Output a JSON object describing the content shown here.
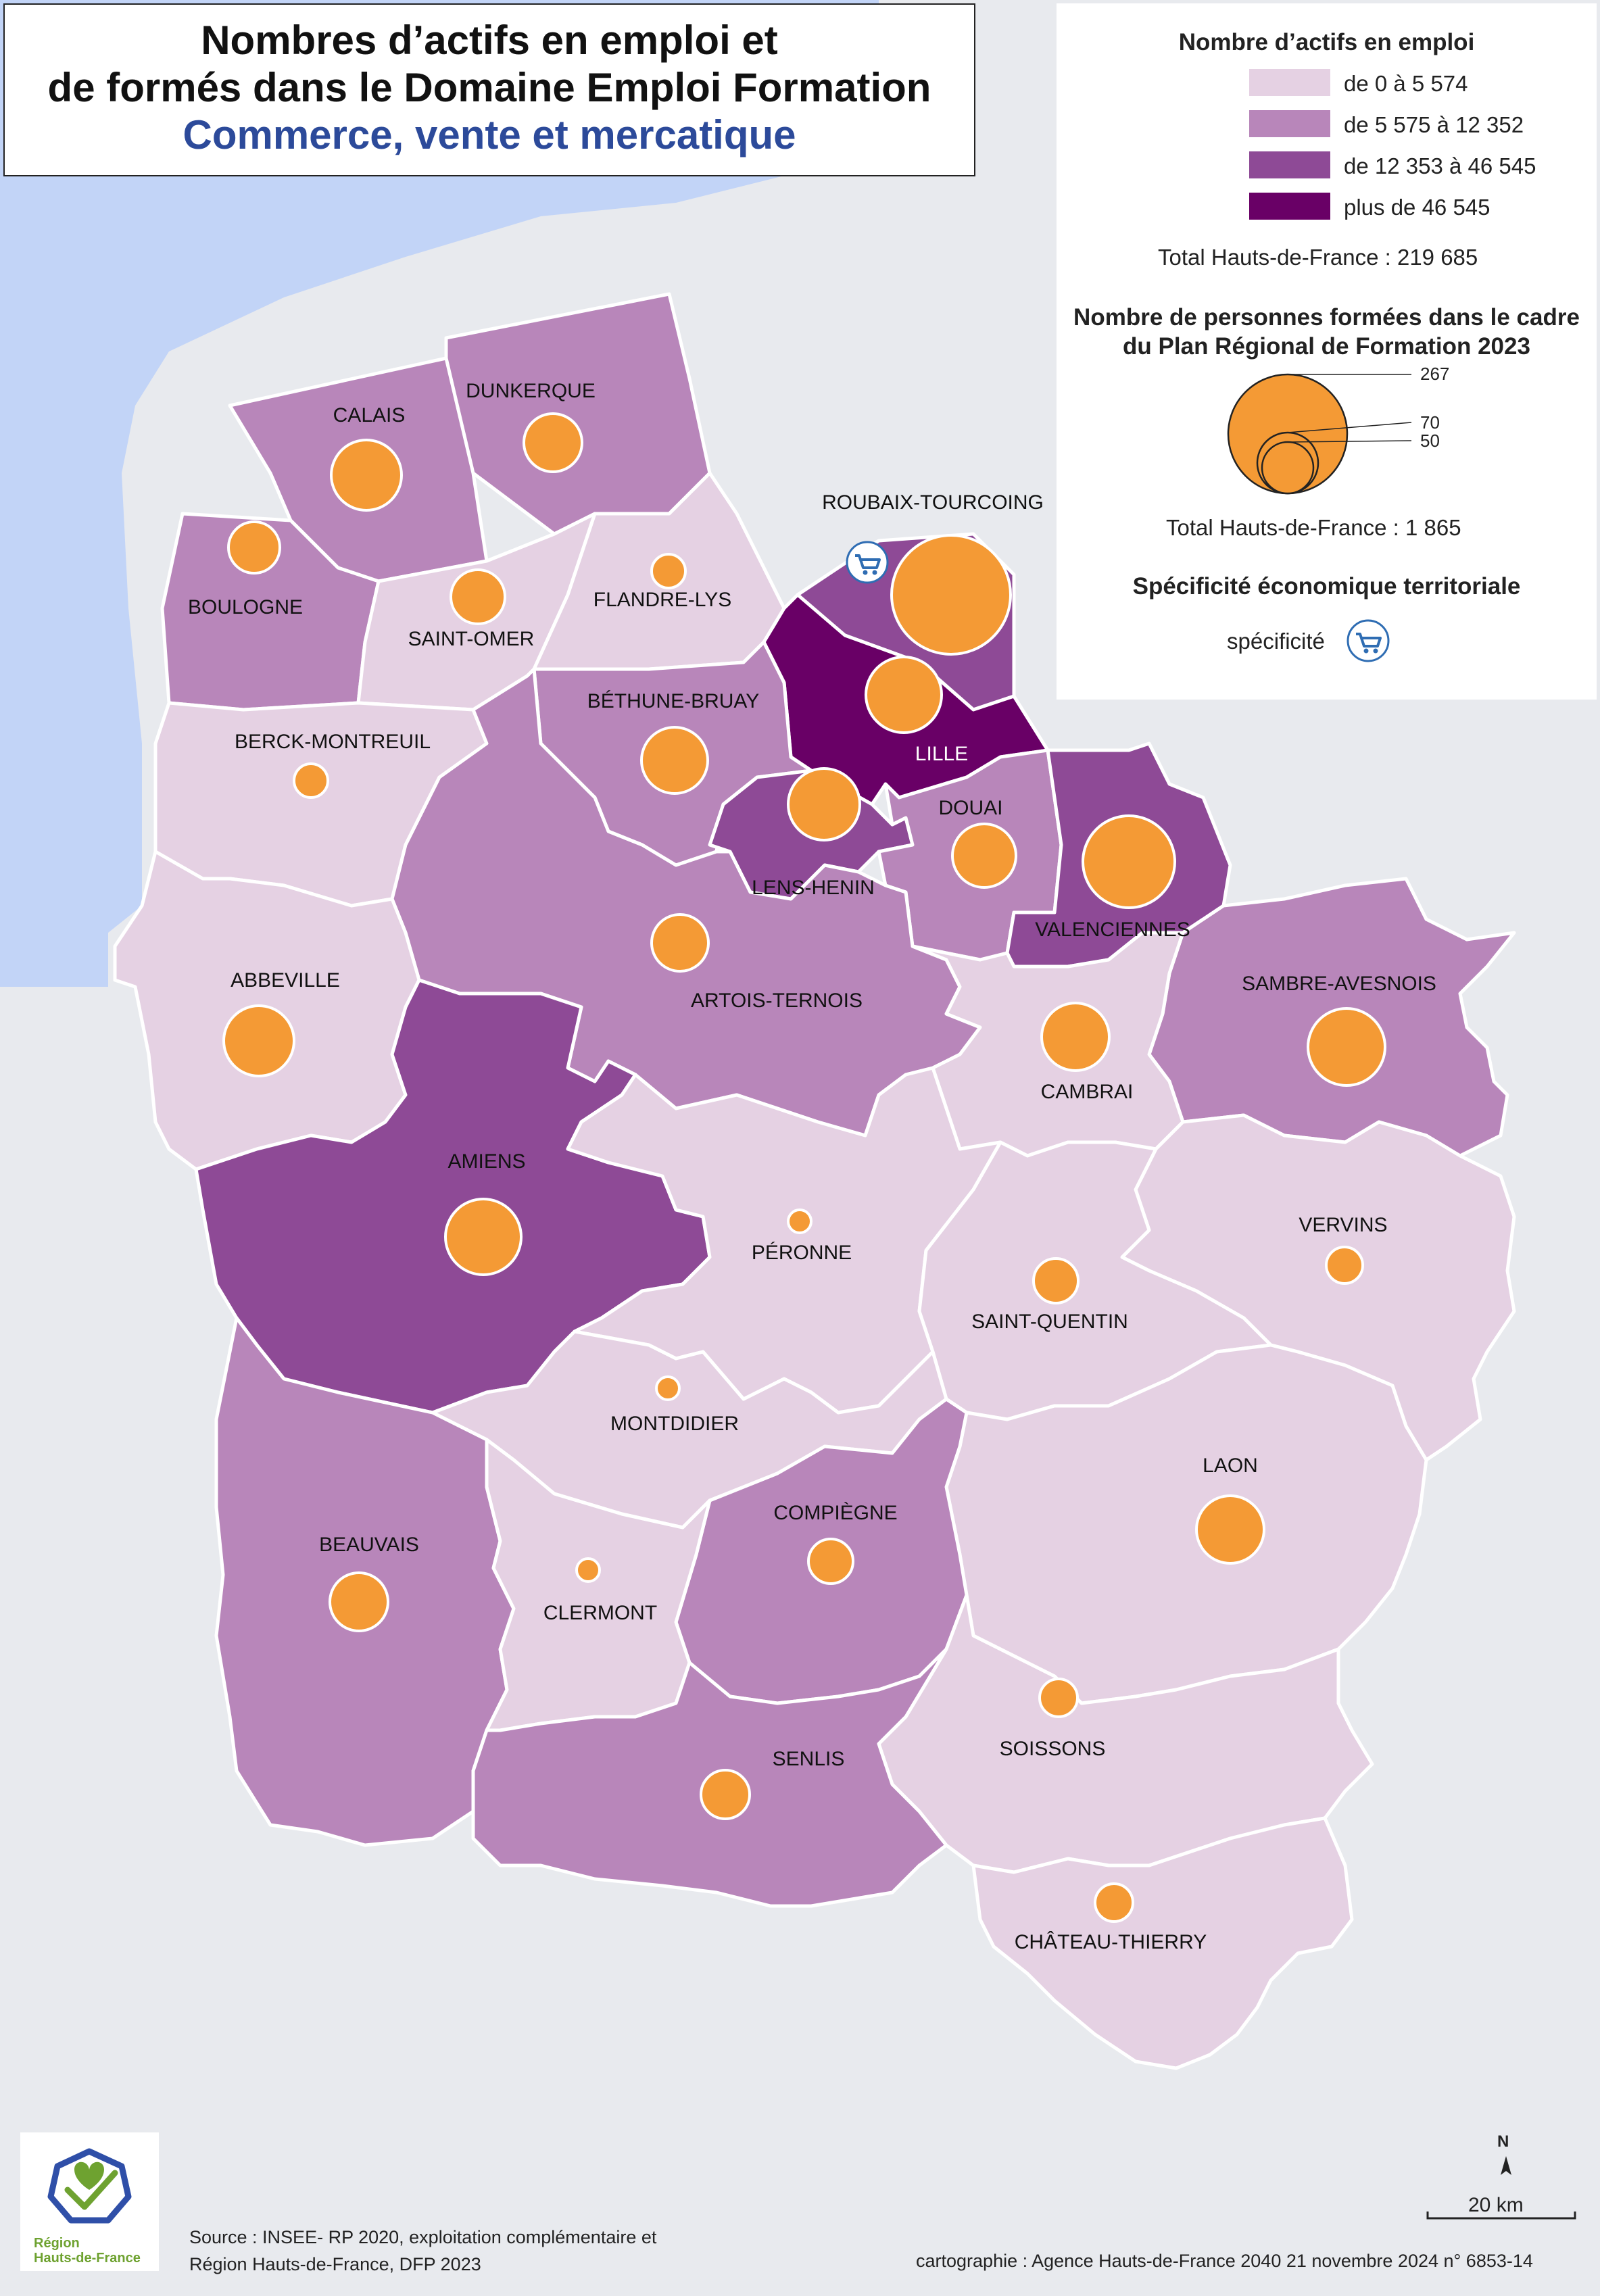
{
  "title": {
    "line1": "Nombres d’actifs en emploi et",
    "line2": "de formés dans le Domaine Emploi Formation",
    "subtitle": "Commerce, vente et mercatique"
  },
  "legend": {
    "choropleth_title": "Nombre d’actifs en emploi",
    "classes": [
      {
        "label": "de 0 à 5 574",
        "color": "#e5d1e3"
      },
      {
        "label": "de 5 575 à 12 352",
        "color": "#b886ba"
      },
      {
        "label": "de 12 353 à 46 545",
        "color": "#8e4a96"
      },
      {
        "label": "plus de 46 545",
        "color": "#690066"
      }
    ],
    "choropleth_total": "Total Hauts-de-France : 219 685",
    "circles_title_line1": "Nombre de personnes formées dans le cadre",
    "circles_title_line2": "du Plan Régional de Formation 2023",
    "circle_values": [
      "267",
      "70",
      "50"
    ],
    "circles_total": "Total Hauts-de-France :  1 865",
    "specificity_title": "Spécificité économique territoriale",
    "specificity_label": "spécificité",
    "circle_color": "#f49a35"
  },
  "zones": [
    {
      "name": "DUNKERQUE",
      "class": 1
    },
    {
      "name": "CALAIS",
      "class": 1
    },
    {
      "name": "BOULOGNE",
      "class": 1
    },
    {
      "name": "SAINT-OMER",
      "class": 0
    },
    {
      "name": "FLANDRE-LYS",
      "class": 0
    },
    {
      "name": "ROUBAIX-TOURCOING",
      "class": 2,
      "specificity": true
    },
    {
      "name": "LILLE",
      "class": 3
    },
    {
      "name": "BÉTHUNE-BRUAY",
      "class": 1
    },
    {
      "name": "BERCK-MONTREUIL",
      "class": 0
    },
    {
      "name": "LENS-HENIN",
      "class": 2
    },
    {
      "name": "DOUAI",
      "class": 1
    },
    {
      "name": "VALENCIENNES",
      "class": 2
    },
    {
      "name": "ARTOIS-TERNOIS",
      "class": 1
    },
    {
      "name": "ABBEVILLE",
      "class": 0
    },
    {
      "name": "SAMBRE-AVESNOIS",
      "class": 1
    },
    {
      "name": "CAMBRAI",
      "class": 0
    },
    {
      "name": "AMIENS",
      "class": 2
    },
    {
      "name": "PÉRONNE",
      "class": 0
    },
    {
      "name": "VERVINS",
      "class": 0
    },
    {
      "name": "SAINT-QUENTIN",
      "class": 0
    },
    {
      "name": "MONTDIDIER",
      "class": 0
    },
    {
      "name": "LAON",
      "class": 0
    },
    {
      "name": "COMPIÈGNE",
      "class": 1
    },
    {
      "name": "BEAUVAIS",
      "class": 1
    },
    {
      "name": "CLERMONT",
      "class": 0
    },
    {
      "name": "SOISSONS",
      "class": 0
    },
    {
      "name": "SENLIS",
      "class": 1
    },
    {
      "name": "CHÂTEAU-THIERRY",
      "class": 0
    }
  ],
  "scale_label": "20 km",
  "north_label": "N",
  "logo": {
    "line1": "Région",
    "line2": "Hauts-de-France"
  },
  "source": {
    "line1": "Source : INSEE- RP 2020, exploitation complémentaire et",
    "line2": "Région Hauts-de-France, DFP 2023"
  },
  "credit": "cartographie : Agence Hauts-de-France 2040  21 novembre 2024  n° 6853-14"
}
